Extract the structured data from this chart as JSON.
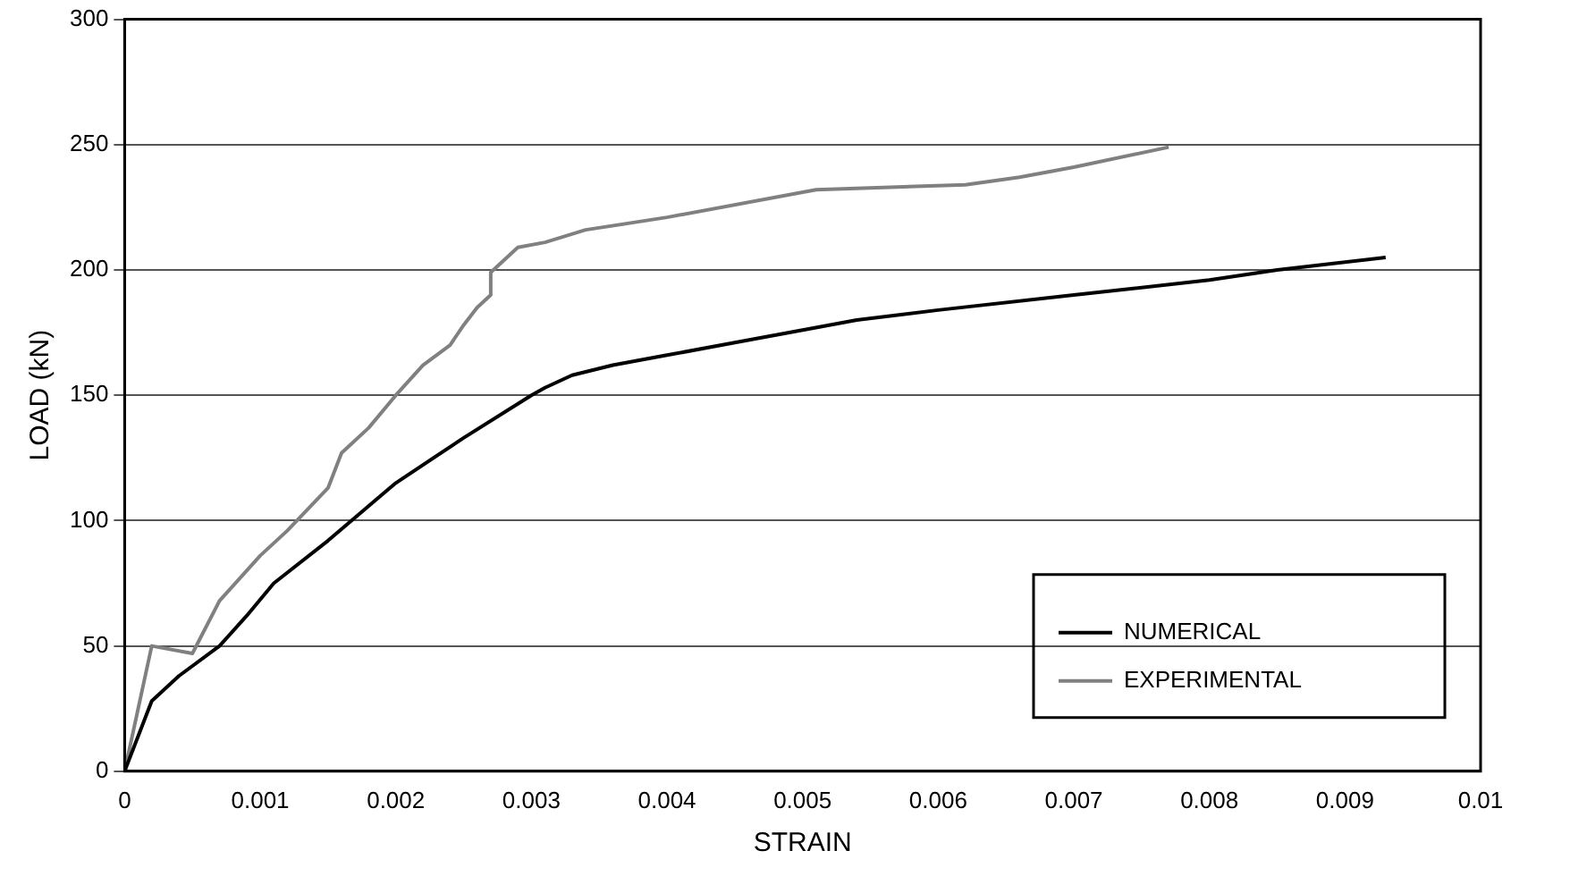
{
  "chart_data": {
    "type": "line",
    "xlabel": "STRAIN",
    "ylabel": "LOAD (kN)",
    "xlim": [
      0,
      0.01
    ],
    "xticks": [
      0,
      0.001,
      0.002,
      0.003,
      0.004,
      0.005,
      0.006,
      0.007,
      0.008,
      0.009,
      0.01
    ],
    "ylim": [
      0,
      300
    ],
    "yticks": [
      0,
      50,
      100,
      150,
      200,
      250,
      300
    ],
    "grid": "y",
    "legend": "bottom right",
    "marker": "none",
    "line_style": "solid",
    "series": [
      {
        "name": "NUMERICAL",
        "color": "#000000",
        "x": [
          0,
          0.0002,
          0.0004,
          0.0007,
          0.0009,
          0.0011,
          0.0015,
          0.002,
          0.0025,
          0.003,
          0.0031,
          0.0033,
          0.0036,
          0.004,
          0.0045,
          0.005,
          0.0054,
          0.006,
          0.007,
          0.008,
          0.0085,
          0.0093
        ],
        "values": [
          0,
          28,
          38,
          50,
          62,
          75,
          92,
          115,
          133,
          150,
          153,
          158,
          162,
          166,
          171,
          176,
          180,
          184,
          190,
          196,
          200,
          205
        ]
      },
      {
        "name": "EXPERIMENTAL",
        "color": "#808080",
        "x": [
          0,
          0.0002,
          0.0005,
          0.0007,
          0.001,
          0.0012,
          0.0015,
          0.0016,
          0.0018,
          0.002,
          0.0022,
          0.0024,
          0.0025,
          0.0026,
          0.0027,
          0.0027,
          0.0029,
          0.0031,
          0.0034,
          0.004,
          0.0051,
          0.0062,
          0.0066,
          0.007,
          0.0077
        ],
        "values": [
          0,
          50,
          47,
          68,
          86,
          96,
          113,
          127,
          137,
          150,
          162,
          170,
          178,
          185,
          190,
          199,
          209,
          211,
          216,
          221,
          232,
          234,
          237,
          241,
          249
        ]
      }
    ]
  }
}
